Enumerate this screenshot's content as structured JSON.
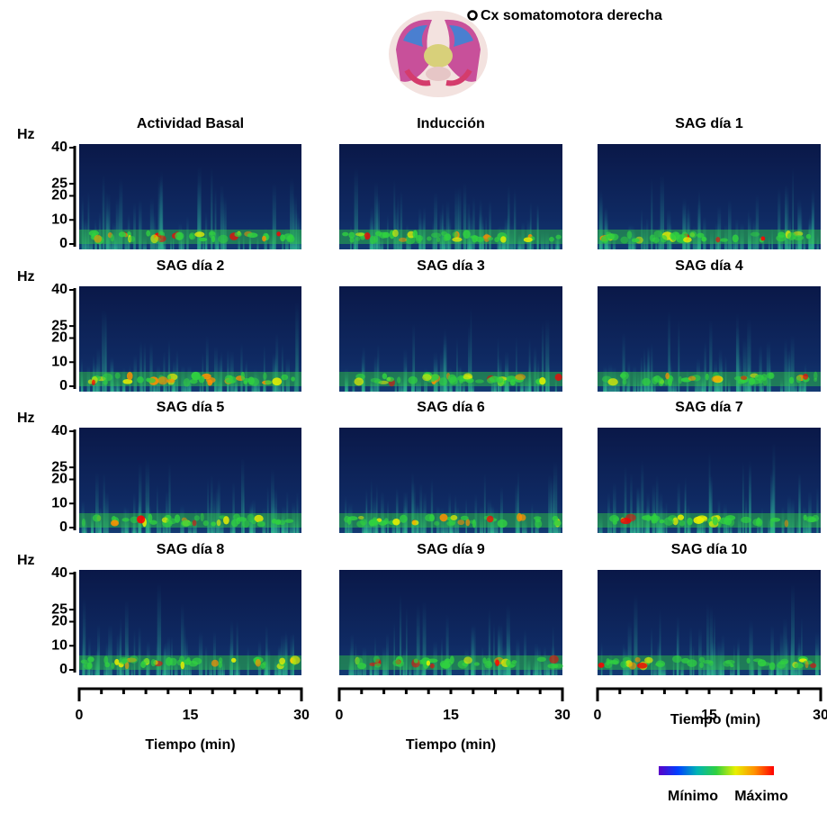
{
  "legend": "Cx somatomotora derecha",
  "chart_data": [
    {
      "type": "spectrogram",
      "title": "Actividad Basal",
      "ylabel": "Hz",
      "ylim": [
        0,
        40
      ],
      "yticks": [
        0,
        10,
        20,
        25,
        40
      ]
    },
    {
      "type": "spectrogram",
      "title": "Inducción"
    },
    {
      "type": "spectrogram",
      "title": "SAG día 1"
    },
    {
      "type": "spectrogram",
      "title": "SAG día 2",
      "ylabel": "Hz",
      "ylim": [
        0,
        40
      ],
      "yticks": [
        0,
        10,
        20,
        25,
        40
      ]
    },
    {
      "type": "spectrogram",
      "title": "SAG día 3"
    },
    {
      "type": "spectrogram",
      "title": "SAG día 4"
    },
    {
      "type": "spectrogram",
      "title": "SAG día 5",
      "ylabel": "Hz",
      "ylim": [
        0,
        40
      ],
      "yticks": [
        0,
        10,
        20,
        25,
        40
      ]
    },
    {
      "type": "spectrogram",
      "title": "SAG día 6"
    },
    {
      "type": "spectrogram",
      "title": "SAG día 7"
    },
    {
      "type": "spectrogram",
      "title": "SAG día 8",
      "ylabel": "Hz",
      "ylim": [
        0,
        40
      ],
      "yticks": [
        0,
        10,
        20,
        25,
        40
      ],
      "xlim": [
        0,
        30
      ],
      "xticks": [
        0,
        15,
        30
      ],
      "xminorticks": [
        3,
        6,
        9,
        12,
        18,
        21,
        24,
        27
      ],
      "xlabel": "Tiempo (min)"
    },
    {
      "type": "spectrogram",
      "title": "SAG día 9",
      "xlim": [
        0,
        30
      ],
      "xticks": [
        0,
        15,
        30
      ],
      "xminorticks": [
        3,
        6,
        9,
        12,
        18,
        21,
        24,
        27
      ],
      "xlabel": "Tiempo (min)"
    },
    {
      "type": "spectrogram",
      "title": "SAG día 10",
      "xlim": [
        0,
        30
      ],
      "xticks": [
        0,
        15,
        30
      ],
      "xminorticks": [
        3,
        6,
        9,
        12,
        18,
        21,
        24,
        27
      ]
    }
  ],
  "colorbar": {
    "title": "Tiempo (min)",
    "min_label": "Mínimo",
    "max_label": "Máximo",
    "colors": [
      "#5a00c8",
      "#0040ff",
      "#00b4b4",
      "#30d040",
      "#e8f000",
      "#ff9000",
      "#ff0000"
    ]
  }
}
